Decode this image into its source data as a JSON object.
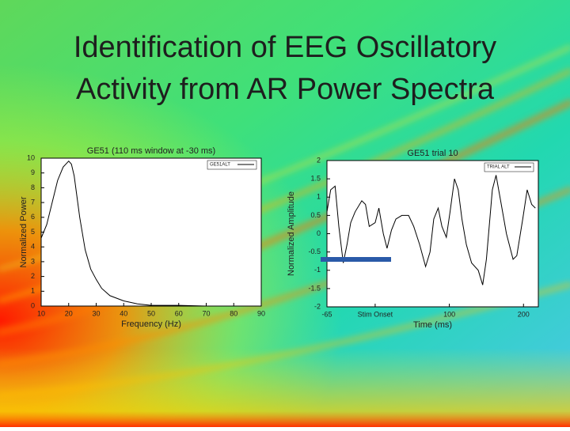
{
  "title": [
    "Identification of EEG Oscillatory",
    "Activity from AR Power Spectra"
  ],
  "chart_data": [
    {
      "type": "line",
      "title": "GE51 (110 ms window at -30 ms)",
      "x_label": "Frequency (Hz)",
      "y_label": "Normalized Power",
      "x": [
        10,
        12,
        14,
        16,
        18,
        20,
        21,
        22,
        24,
        26,
        28,
        30,
        32,
        35,
        40,
        45,
        50,
        60,
        70,
        80,
        90
      ],
      "series": [
        {
          "name": "GE51ALT",
          "color": "#000000",
          "values": [
            4.6,
            5.5,
            7,
            8.5,
            9.4,
            9.8,
            9.6,
            8.8,
            6,
            3.8,
            2.5,
            1.8,
            1.2,
            0.7,
            0.35,
            0.15,
            0.05,
            0.05,
            0,
            0,
            0
          ]
        }
      ],
      "xlim": [
        10,
        90
      ],
      "xticks": [
        10,
        20,
        30,
        40,
        50,
        60,
        70,
        80,
        90
      ],
      "ylim": [
        0,
        10
      ],
      "yticks": [
        0,
        1,
        2,
        3,
        4,
        5,
        6,
        7,
        8,
        9,
        10
      ],
      "grid": false,
      "legend": "top-right"
    },
    {
      "type": "line",
      "title": "GE51 trial 10",
      "x_label": "Time (ms)",
      "y_label": "Normalized Amplitude",
      "x": [
        -65,
        -60,
        -54,
        -49,
        -43,
        -38,
        -33,
        -27,
        -18,
        -13,
        -8,
        0,
        5,
        11,
        16,
        22,
        28,
        36,
        45,
        52,
        60,
        68,
        74,
        79,
        85,
        90,
        96,
        101,
        107,
        112,
        117,
        123,
        130,
        139,
        145,
        150,
        158,
        163,
        170,
        177,
        186,
        191,
        199,
        205,
        211,
        216
      ],
      "series": [
        {
          "name": "TRIAL ALT",
          "color": "#000000",
          "values": [
            0.6,
            1.2,
            1.3,
            0.2,
            -0.8,
            -0.3,
            0.3,
            0.6,
            0.9,
            0.8,
            0.2,
            0.3,
            0.7,
            0.0,
            -0.4,
            0.1,
            0.4,
            0.5,
            0.5,
            0.2,
            -0.3,
            -0.9,
            -0.5,
            0.4,
            0.7,
            0.2,
            -0.1,
            0.6,
            1.5,
            1.2,
            0.4,
            -0.3,
            -0.8,
            -1.0,
            -1.4,
            -0.7,
            1.2,
            1.6,
            0.8,
            0.0,
            -0.7,
            -0.6,
            0.4,
            1.2,
            0.8,
            0.7
          ]
        }
      ],
      "xlim": [
        -65,
        220
      ],
      "xticks": [
        -65,
        {
          "value": 0,
          "label": "Stim Onset"
        },
        100,
        200
      ],
      "ylim": [
        -2,
        2
      ],
      "yticks": [
        -2,
        -1.5,
        -1,
        -0.5,
        0,
        0.5,
        1,
        1.5,
        2
      ],
      "grid": false,
      "legend": "top-right"
    }
  ]
}
